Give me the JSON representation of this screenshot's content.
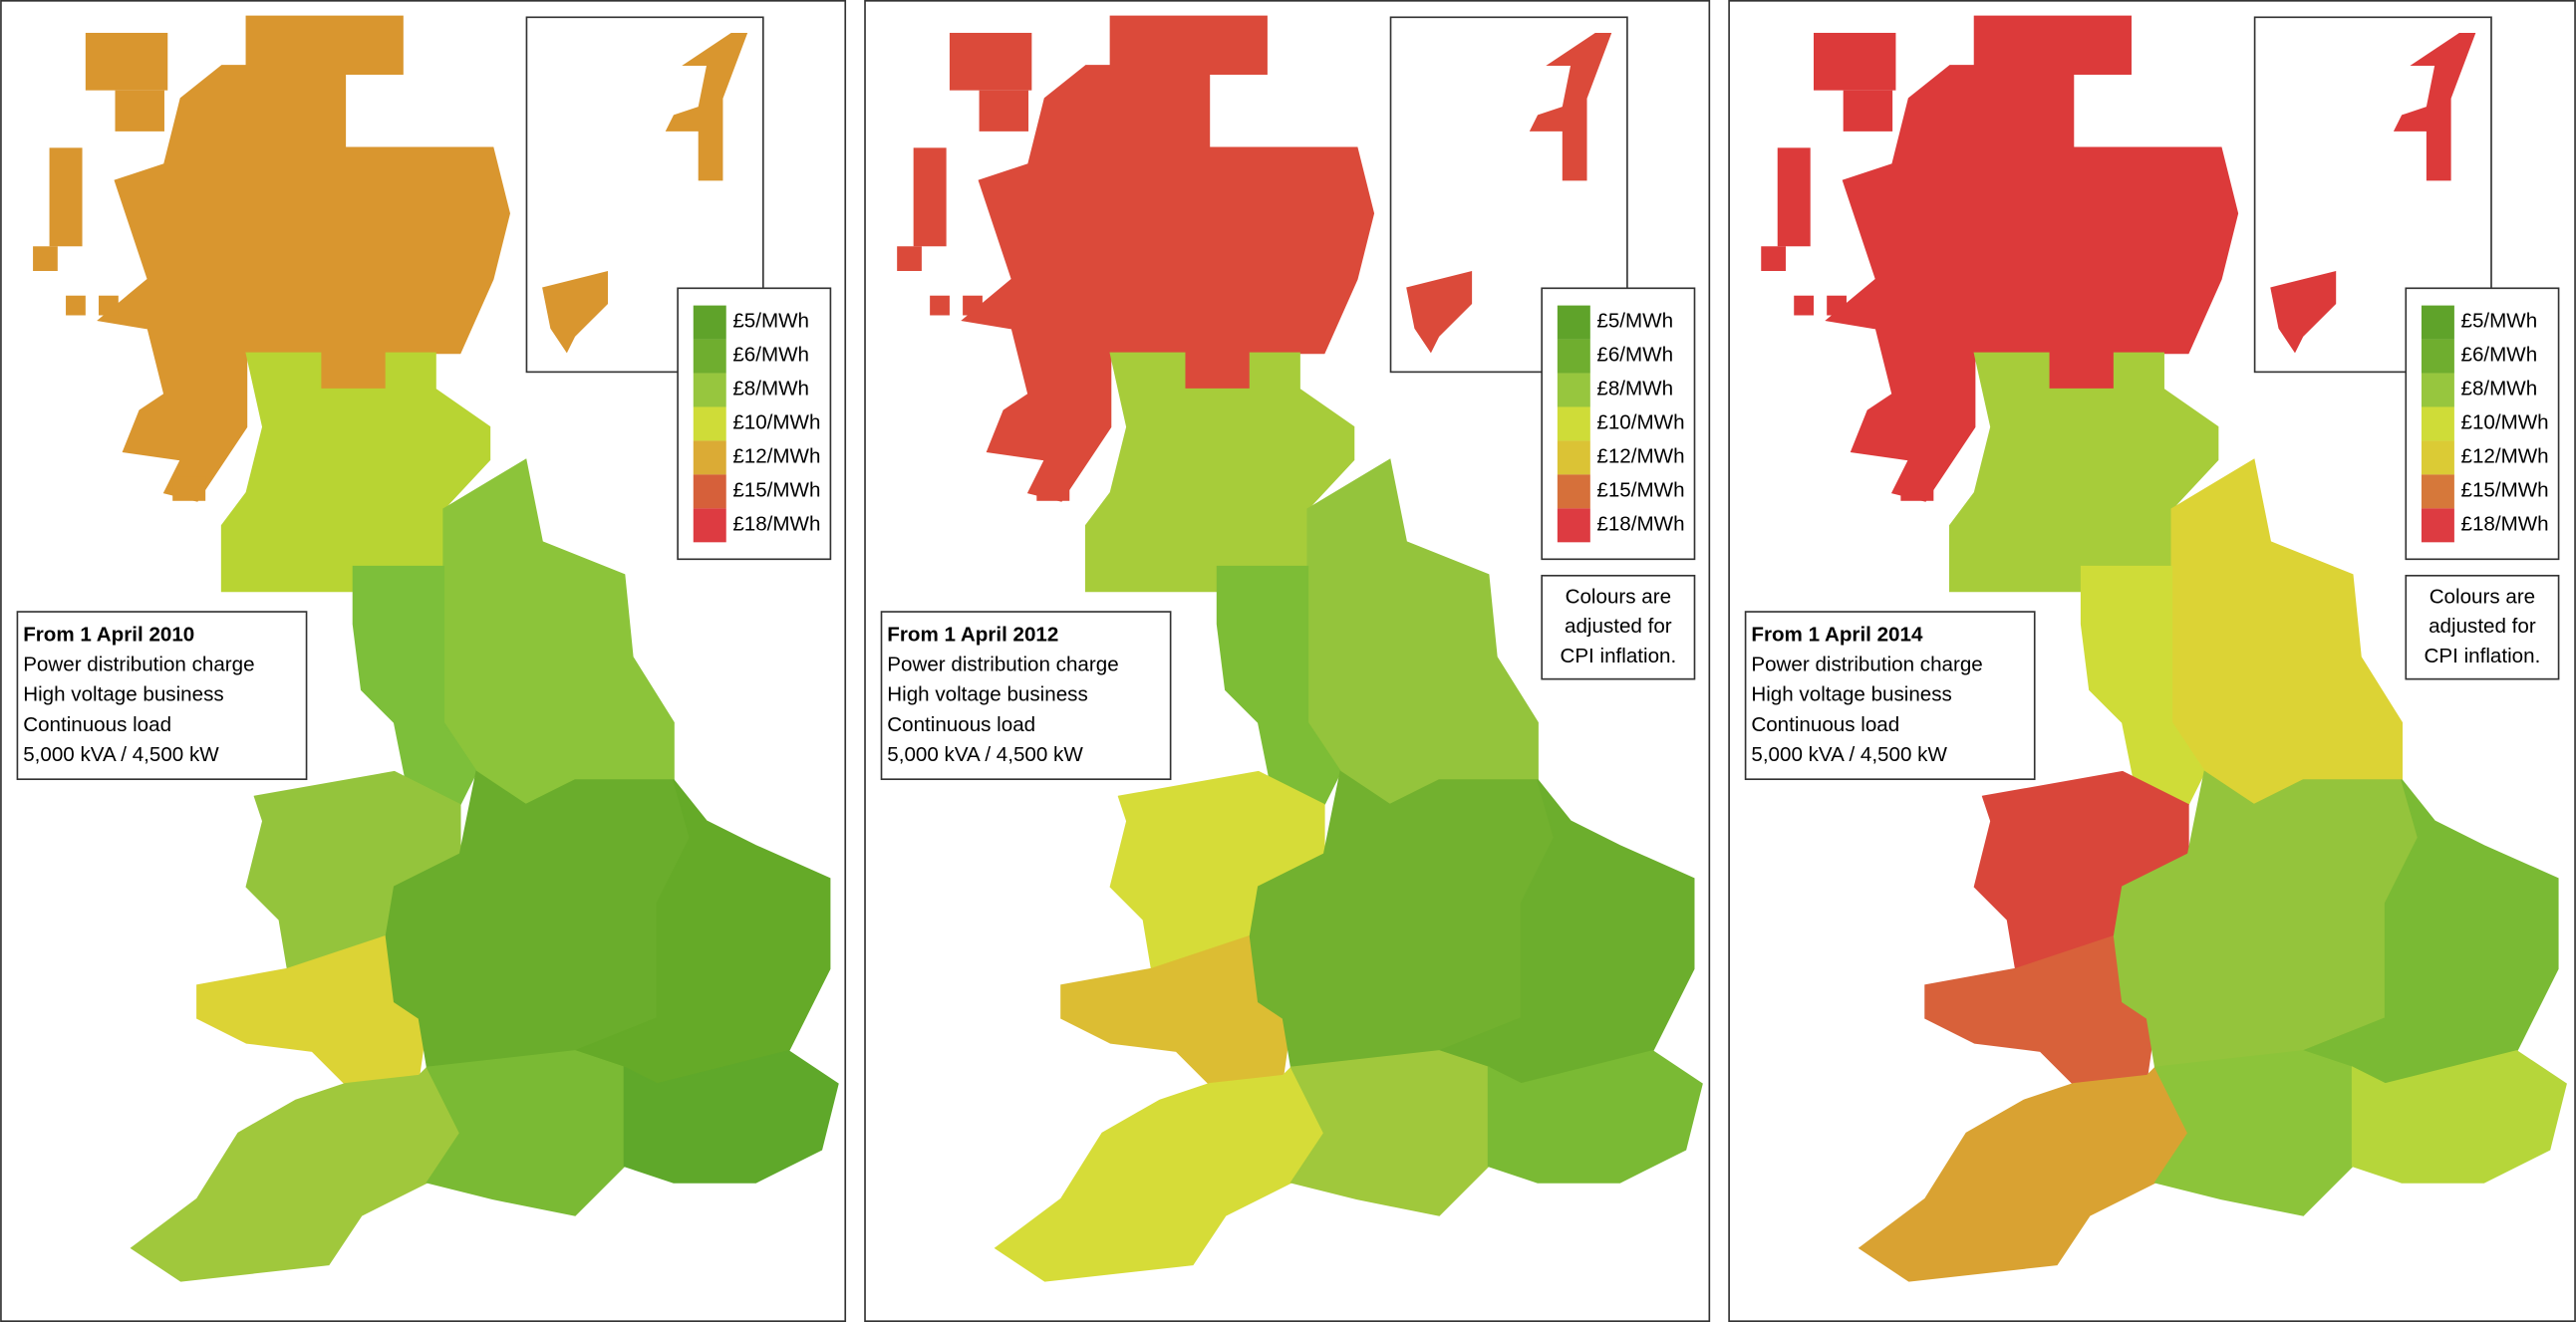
{
  "panels": [
    {
      "info": [
        "From 1 April 2010",
        "Power distribution charge",
        "High voltage business",
        "Continuous load",
        "5,000 kVA / 4,500 kW"
      ],
      "legend": [
        {
          "label": "£5/MWh",
          "color": "#5fa32a"
        },
        {
          "label": "£6/MWh",
          "color": "#6fae2f"
        },
        {
          "label": "£8/MWh",
          "color": "#97c63e"
        },
        {
          "label": "£10/MWh",
          "color": "#cfdc38"
        },
        {
          "label": "£12/MWh",
          "color": "#dbab35"
        },
        {
          "label": "£15/MWh",
          "color": "#d6603a"
        },
        {
          "label": "£18/MWh",
          "color": "#dd3b41"
        }
      ],
      "region_colors": [
        "#d9962f",
        "#b8d433",
        "#8cc43a",
        "#7dbf3a",
        "#94c43c",
        "#dcd335",
        "#6aad2c",
        "#65aa28",
        "#a0c83c",
        "#7aba34",
        "#5fa82a"
      ]
    },
    {
      "info": [
        "From 1 April 2012",
        "Power distribution charge",
        "High voltage business",
        "Continuous load",
        "5,000 kVA / 4,500 kW"
      ],
      "legend": [
        {
          "label": "£5/MWh",
          "color": "#5fa32a"
        },
        {
          "label": "£6/MWh",
          "color": "#6fae2f"
        },
        {
          "label": "£8/MWh",
          "color": "#97c63e"
        },
        {
          "label": "£10/MWh",
          "color": "#cfdc38"
        },
        {
          "label": "£12/MWh",
          "color": "#dbc335"
        },
        {
          "label": "£15/MWh",
          "color": "#d6703a"
        },
        {
          "label": "£18/MWh",
          "color": "#dd3b41"
        }
      ],
      "note": [
        "Colours are",
        "adjusted for",
        "CPI inflation."
      ],
      "region_colors": [
        "#db4a3a",
        "#a7cc3a",
        "#94c43c",
        "#7dbd36",
        "#d6dc38",
        "#dcbd33",
        "#72b12f",
        "#6cae2d",
        "#d6dc38",
        "#a0c83c",
        "#7aba34"
      ]
    },
    {
      "info": [
        "From 1 April 2014",
        "Power distribution charge",
        "High voltage business",
        "Continuous load",
        "5,000 kVA / 4,500 kW"
      ],
      "legend": [
        {
          "label": "£5/MWh",
          "color": "#5fa32a"
        },
        {
          "label": "£6/MWh",
          "color": "#6fae2f"
        },
        {
          "label": "£8/MWh",
          "color": "#97c63e"
        },
        {
          "label": "£10/MWh",
          "color": "#cfdc38"
        },
        {
          "label": "£12/MWh",
          "color": "#dbcb35"
        },
        {
          "label": "£15/MWh",
          "color": "#d6783a"
        },
        {
          "label": "£18/MWh",
          "color": "#dd3b41"
        }
      ],
      "note": [
        "Colours are",
        "adjusted for",
        "CPI inflation."
      ],
      "region_colors": [
        "#dc3a3a",
        "#a7cc3a",
        "#dcd335",
        "#cfdc38",
        "#d9463a",
        "#d8613a",
        "#94c43c",
        "#7aba34",
        "#d9a232",
        "#8cc43a",
        "#b6d63a"
      ]
    }
  ]
}
